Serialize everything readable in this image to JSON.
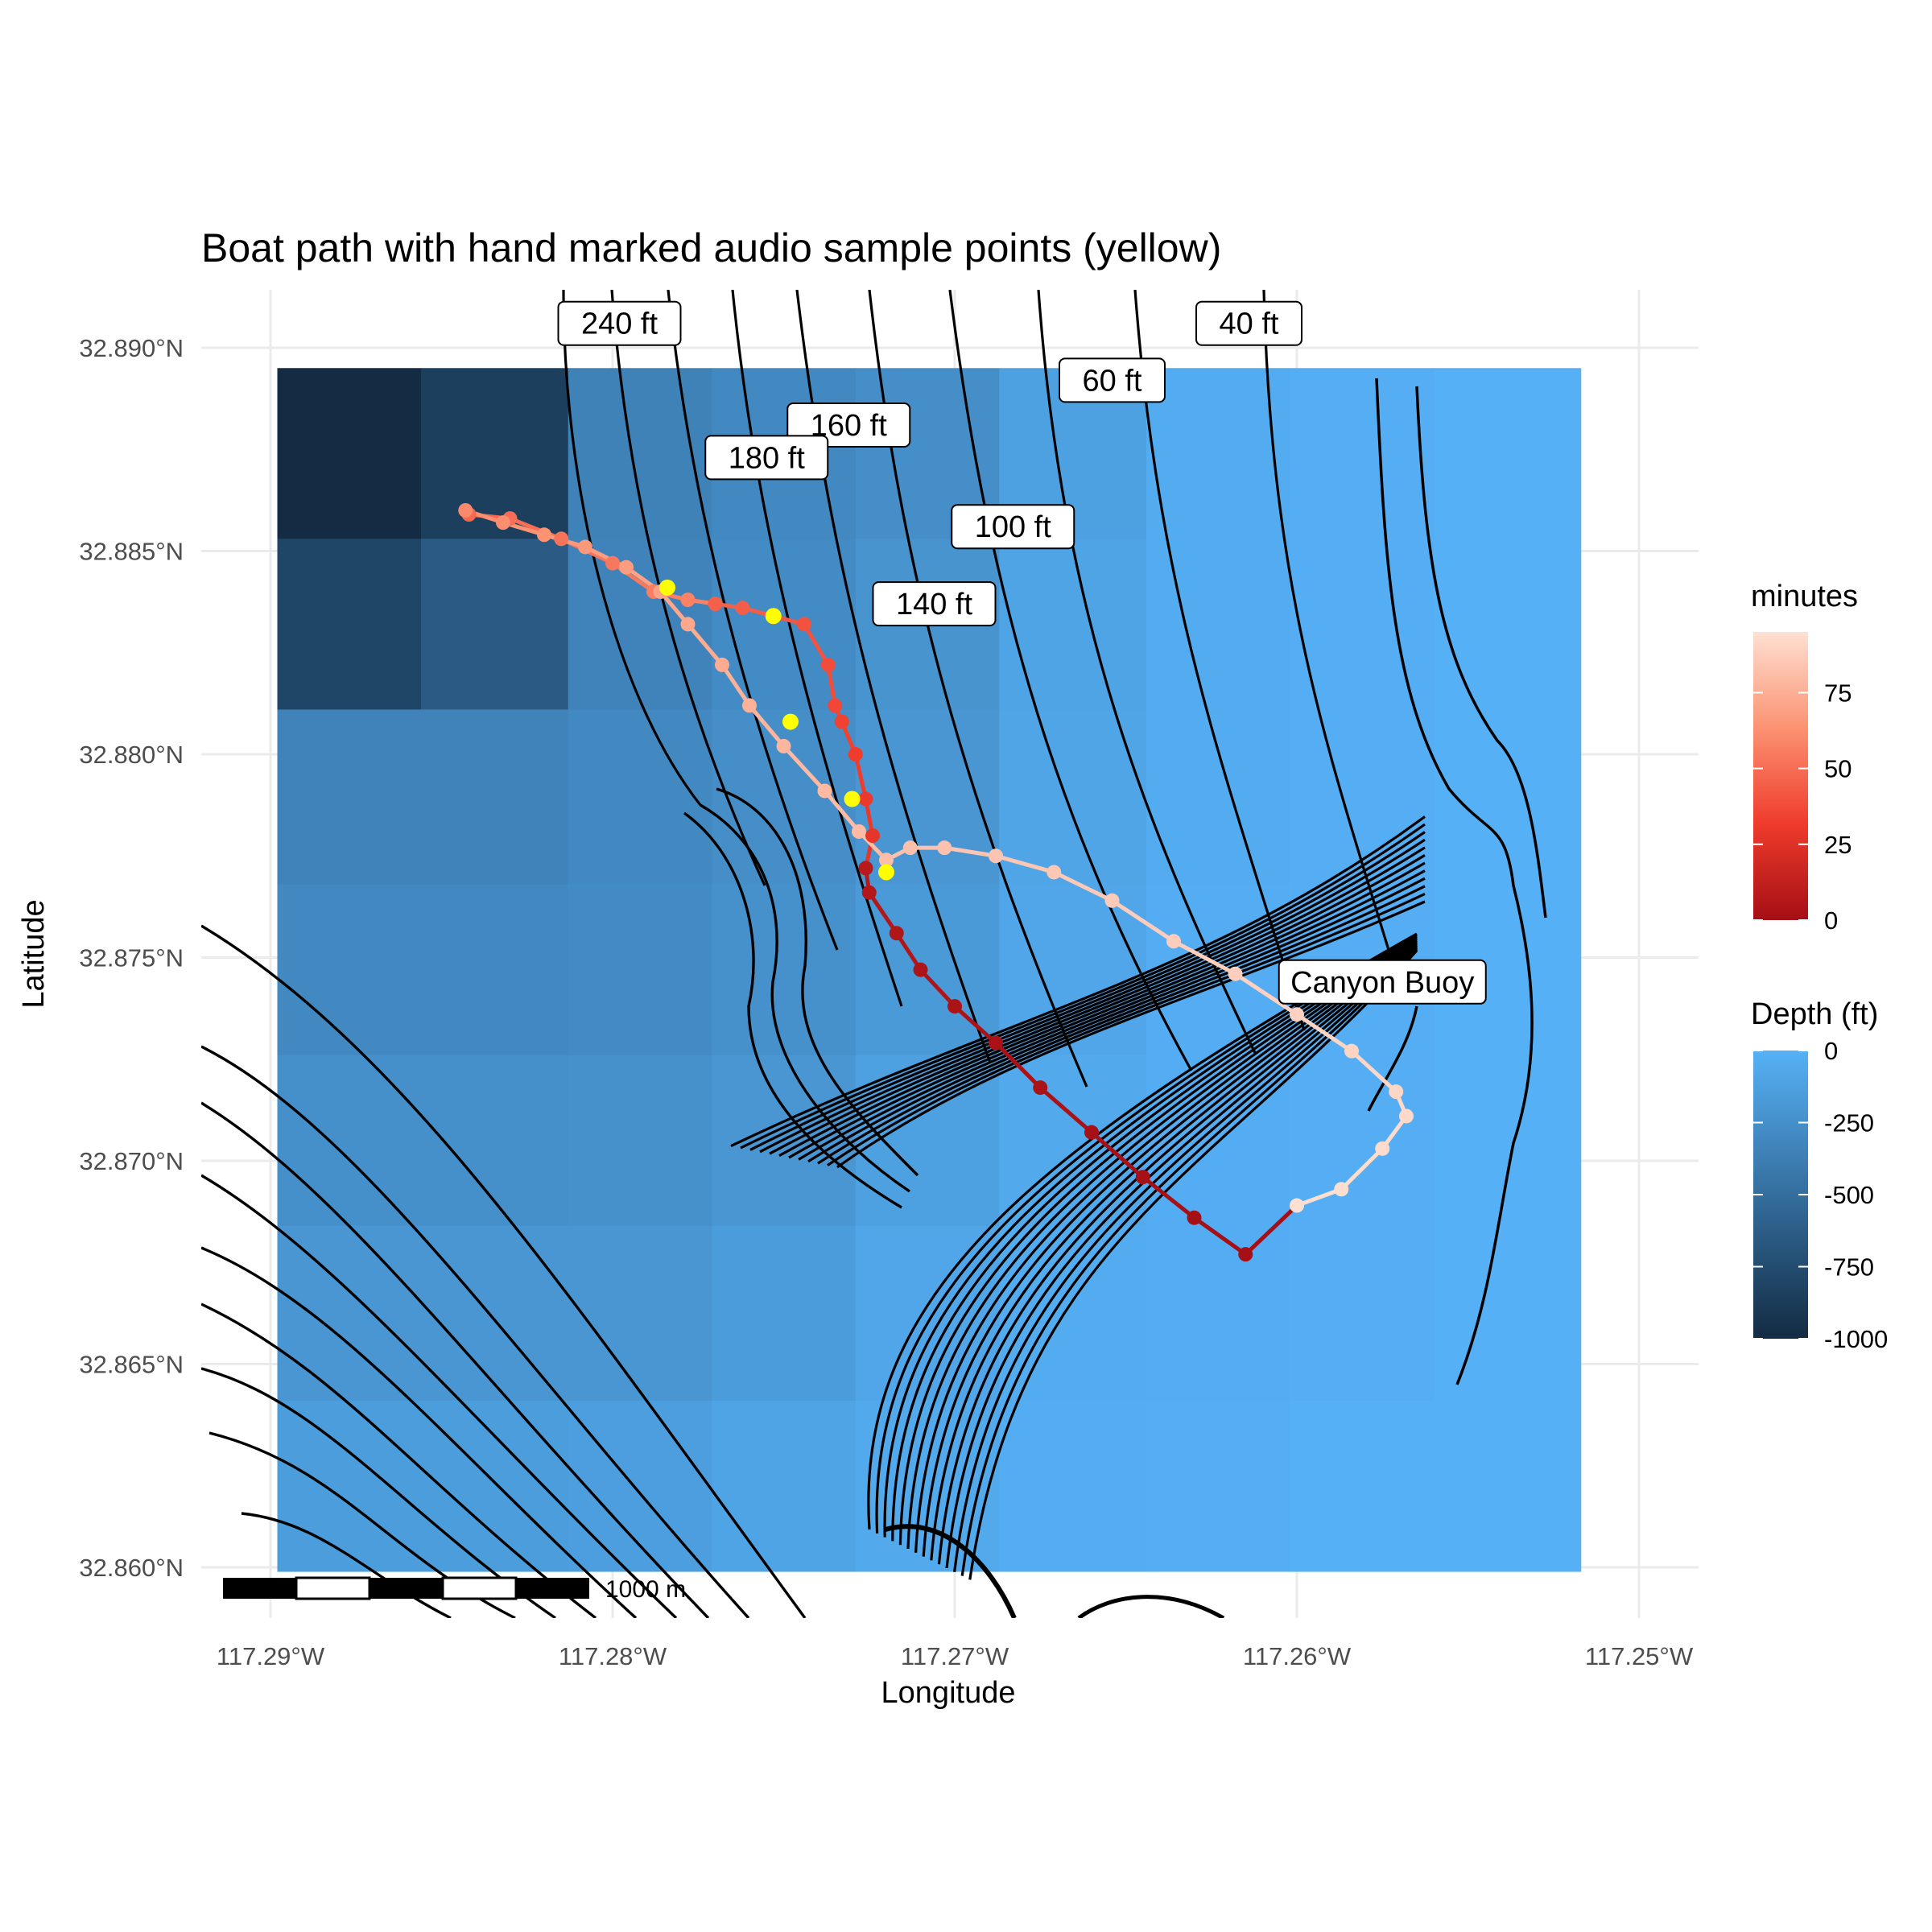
{
  "title": "Boat path with hand marked audio sample points (yellow)",
  "x_axis": {
    "title": "Longitude",
    "ticks": [
      {
        "value": -117.29,
        "label": "117.29°W"
      },
      {
        "value": -117.28,
        "label": "117.28°W"
      },
      {
        "value": -117.27,
        "label": "117.27°W"
      },
      {
        "value": -117.26,
        "label": "117.26°W"
      },
      {
        "value": -117.25,
        "label": "117.25°W"
      }
    ]
  },
  "y_axis": {
    "title": "Latitude",
    "ticks": [
      {
        "value": 32.86,
        "label": "32.860°N"
      },
      {
        "value": 32.865,
        "label": "32.865°N"
      },
      {
        "value": 32.87,
        "label": "32.870°N"
      },
      {
        "value": 32.875,
        "label": "32.875°N"
      },
      {
        "value": 32.88,
        "label": "32.880°N"
      },
      {
        "value": 32.885,
        "label": "32.885°N"
      },
      {
        "value": 32.89,
        "label": "32.890°N"
      }
    ]
  },
  "legend_minutes": {
    "title": "minutes",
    "range": [
      0,
      95
    ],
    "ticks": [
      {
        "value": 0,
        "label": "0"
      },
      {
        "value": 25,
        "label": "25"
      },
      {
        "value": 50,
        "label": "50"
      },
      {
        "value": 75,
        "label": "75"
      }
    ],
    "colors": [
      "#a50f15",
      "#ef3b2c",
      "#fc9272",
      "#fee0d2"
    ]
  },
  "legend_depth": {
    "title": "Depth (ft)",
    "range": [
      -1000,
      0
    ],
    "ticks": [
      {
        "value": 0,
        "label": "0"
      },
      {
        "value": -250,
        "label": "-250"
      },
      {
        "value": -500,
        "label": "-500"
      },
      {
        "value": -750,
        "label": "-750"
      },
      {
        "value": -1000,
        "label": "-1000"
      }
    ],
    "colors": [
      "#132b43",
      "#56b1f7"
    ]
  },
  "scale_bar": {
    "label": "1000 m"
  },
  "contour_labels": [
    {
      "text": "240 ft",
      "lon": -117.2798,
      "lat": 32.8906
    },
    {
      "text": "40 ft",
      "lon": -117.2614,
      "lat": 32.8906
    },
    {
      "text": "60 ft",
      "lon": -117.2654,
      "lat": 32.8892
    },
    {
      "text": "160 ft",
      "lon": -117.2731,
      "lat": 32.8881
    },
    {
      "text": "180 ft",
      "lon": -117.2755,
      "lat": 32.8873
    },
    {
      "text": "100 ft",
      "lon": -117.2683,
      "lat": 32.8856
    },
    {
      "text": "140 ft",
      "lon": -117.2706,
      "lat": 32.8837
    }
  ],
  "place_labels": [
    {
      "text": "Canyon Buoy",
      "lon": -117.2575,
      "lat": 32.8744
    }
  ],
  "chart_data": {
    "type": "map",
    "depth_grid": {
      "lon_edges": [
        -117.2898,
        -117.2856,
        -117.2813,
        -117.2771,
        -117.2729,
        -117.2687,
        -117.2644,
        -117.2602,
        -117.256,
        -117.2517
      ],
      "lat_edges": [
        32.8895,
        32.8853,
        32.8811,
        32.8768,
        32.8726,
        32.8684,
        32.8641,
        32.8599
      ],
      "values_ft": [
        [
          -1000,
          -850,
          -350,
          -300,
          -260,
          -120,
          -40,
          -20,
          -10
        ],
        [
          -800,
          -640,
          -340,
          -280,
          -220,
          -100,
          -40,
          -20,
          -10
        ],
        [
          -340,
          -340,
          -300,
          -260,
          -200,
          -90,
          -40,
          -20,
          -10
        ],
        [
          -300,
          -300,
          -280,
          -240,
          -170,
          -80,
          -30,
          -20,
          -10
        ],
        [
          -250,
          -250,
          -240,
          -200,
          -120,
          -60,
          -30,
          -20,
          -10
        ],
        [
          -200,
          -200,
          -200,
          -160,
          -80,
          -40,
          -30,
          -20,
          -10
        ],
        [
          -150,
          -150,
          -140,
          -100,
          -60,
          -30,
          -20,
          -10,
          -10
        ]
      ]
    },
    "boat_path": {
      "lon": [
        -117.2842,
        -117.283,
        -117.2815,
        -117.28,
        -117.2788,
        -117.2778,
        -117.277,
        -117.2762,
        -117.2753,
        -117.2744,
        -117.2737,
        -117.2735,
        -117.2733,
        -117.2729,
        -117.2726,
        -117.2724,
        -117.2726,
        -117.2725,
        -117.2717,
        -117.271,
        -117.27,
        -117.2688,
        -117.2675,
        -117.266,
        -117.2645,
        -117.263,
        -117.2615,
        -117.26,
        -117.2587,
        -117.2575,
        -117.2568,
        -117.2571,
        -117.2584,
        -117.26,
        -117.2618,
        -117.2636,
        -117.2654,
        -117.2671,
        -117.2688,
        -117.2703,
        -117.2713,
        -117.272,
        -117.2728,
        -117.2738,
        -117.275,
        -117.276,
        -117.2768,
        -117.2778,
        -117.2786,
        -117.2796,
        -117.2808,
        -117.282,
        -117.2832,
        -117.2843
      ],
      "lat": [
        32.8859,
        32.8858,
        32.8853,
        32.8847,
        32.884,
        32.8838,
        32.8837,
        32.8836,
        32.8834,
        32.8832,
        32.8822,
        32.8812,
        32.8808,
        32.88,
        32.8789,
        32.878,
        32.8772,
        32.8766,
        32.8756,
        32.8747,
        32.8738,
        32.8729,
        32.8718,
        32.8707,
        32.8696,
        32.8686,
        32.8677,
        32.8689,
        32.8693,
        32.8703,
        32.8711,
        32.8717,
        32.8727,
        32.8736,
        32.8746,
        32.8754,
        32.8764,
        32.8771,
        32.8775,
        32.8777,
        32.8777,
        32.8774,
        32.8781,
        32.8791,
        32.8802,
        32.8812,
        32.8822,
        32.8832,
        32.884,
        32.8846,
        32.8851,
        32.8854,
        32.8857,
        32.886
      ],
      "minutes": [
        48,
        50,
        52,
        54,
        56,
        58,
        45,
        44,
        42,
        40,
        38,
        36,
        34,
        32,
        30,
        28,
        8,
        6,
        5,
        4,
        3,
        2,
        2,
        1,
        1,
        0,
        0,
        95,
        94,
        93,
        92,
        91,
        90,
        89,
        88,
        87,
        86,
        85,
        84,
        83,
        82,
        81,
        80,
        79,
        78,
        76,
        74,
        72,
        70,
        68,
        66,
        64,
        62,
        60
      ]
    },
    "audio_sample_points": {
      "lon": [
        -117.2784,
        -117.2753,
        -117.2748,
        -117.273,
        -117.272
      ],
      "lat": [
        32.8841,
        32.8834,
        32.8808,
        32.8789,
        32.8771
      ]
    }
  }
}
